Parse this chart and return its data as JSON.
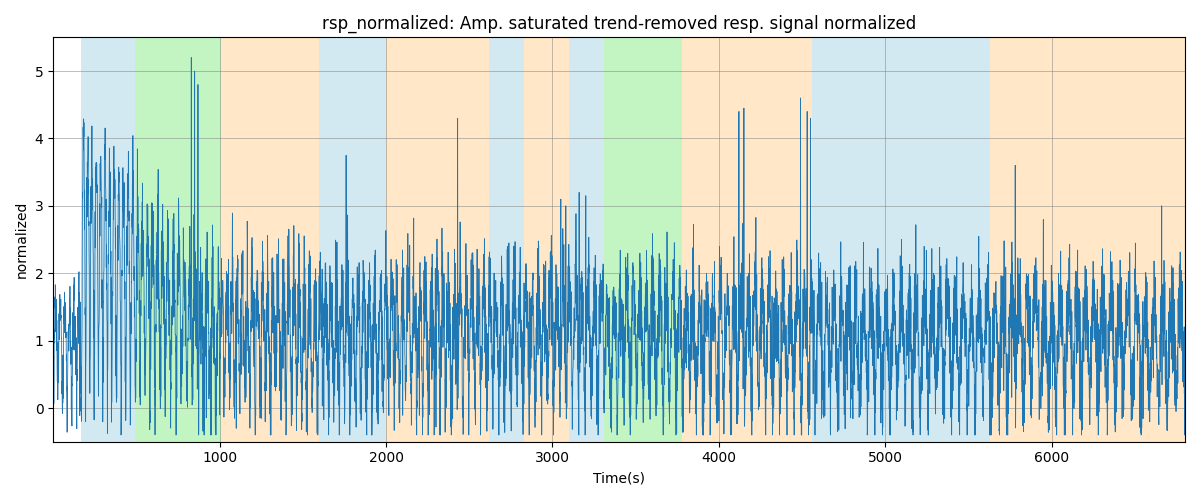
{
  "title": "rsp_normalized: Amp. saturated trend-removed resp. signal normalized",
  "xlabel": "Time(s)",
  "ylabel": "normalized",
  "xlim": [
    0,
    6800
  ],
  "ylim": [
    -0.5,
    5.5
  ],
  "yticks": [
    0,
    1,
    2,
    3,
    4,
    5
  ],
  "xticks": [
    1000,
    2000,
    3000,
    4000,
    5000,
    6000
  ],
  "line_color": "#1f77b4",
  "line_width": 0.6,
  "background_color": "#ffffff",
  "grid": true,
  "bands": [
    {
      "xmin": 170,
      "xmax": 490,
      "color": "#add8e6",
      "alpha": 0.55
    },
    {
      "xmin": 490,
      "xmax": 1010,
      "color": "#90ee90",
      "alpha": 0.55
    },
    {
      "xmin": 1010,
      "xmax": 1600,
      "color": "#ffd59a",
      "alpha": 0.55
    },
    {
      "xmin": 1600,
      "xmax": 2000,
      "color": "#add8e6",
      "alpha": 0.55
    },
    {
      "xmin": 2000,
      "xmax": 2620,
      "color": "#ffd59a",
      "alpha": 0.55
    },
    {
      "xmin": 2620,
      "xmax": 2830,
      "color": "#add8e6",
      "alpha": 0.55
    },
    {
      "xmin": 2830,
      "xmax": 3100,
      "color": "#ffd59a",
      "alpha": 0.55
    },
    {
      "xmin": 3100,
      "xmax": 3310,
      "color": "#add8e6",
      "alpha": 0.55
    },
    {
      "xmin": 3310,
      "xmax": 3780,
      "color": "#90ee90",
      "alpha": 0.55
    },
    {
      "xmin": 3780,
      "xmax": 4070,
      "color": "#ffd59a",
      "alpha": 0.55
    },
    {
      "xmin": 4070,
      "xmax": 4560,
      "color": "#ffd59a",
      "alpha": 0.55
    },
    {
      "xmin": 4560,
      "xmax": 5630,
      "color": "#add8e6",
      "alpha": 0.55
    },
    {
      "xmin": 5630,
      "xmax": 6800,
      "color": "#ffd59a",
      "alpha": 0.55
    }
  ],
  "seed": 42,
  "n_points": 6800
}
